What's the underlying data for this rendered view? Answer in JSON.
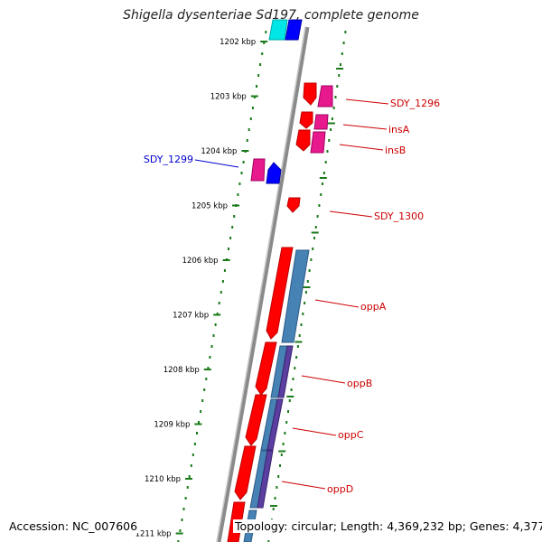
{
  "title": "Shigella dysenteriae Sd197, complete genome",
  "accession": "Accession: NC_007606",
  "topology": "Topology: circular; Length: 4,369,232 bp; Genes: 4,377",
  "colors": {
    "forward": "#ff0000",
    "reverse_pink": "#e8198c",
    "reverse_blue": "#0000ff",
    "cyan": "#00e5e5",
    "steel": "#4682b4",
    "purple": "#5b3fa0",
    "tick": "#1a7a1a",
    "backbone": "#8a8a8a",
    "label_red": "#cc0000",
    "label_blue": "#0000cc"
  },
  "scale_ticks": [
    {
      "label": "1202 kbp",
      "kbp": 1202
    },
    {
      "label": "1203 kbp",
      "kbp": 1203
    },
    {
      "label": "1204 kbp",
      "kbp": 1204
    },
    {
      "label": "1205 kbp",
      "kbp": 1205
    },
    {
      "label": "1206 kbp",
      "kbp": 1206
    },
    {
      "label": "1207 kbp",
      "kbp": 1207
    },
    {
      "label": "1208 kbp",
      "kbp": 1208
    },
    {
      "label": "1209 kbp",
      "kbp": 1209
    },
    {
      "label": "1210 kbp",
      "kbp": 1210
    },
    {
      "label": "1211 kbp",
      "kbp": 1211
    }
  ],
  "gene_labels": [
    {
      "text": "SDY_1296",
      "color": "#cc0000"
    },
    {
      "text": "insA",
      "color": "#cc0000"
    },
    {
      "text": "insB",
      "color": "#cc0000"
    },
    {
      "text": "SDY_1299",
      "color": "#0000cc"
    },
    {
      "text": "SDY_1300",
      "color": "#cc0000"
    },
    {
      "text": "oppA",
      "color": "#cc0000"
    },
    {
      "text": "oppB",
      "color": "#cc0000"
    },
    {
      "text": "oppC",
      "color": "#cc0000"
    },
    {
      "text": "oppD",
      "color": "#cc0000"
    }
  ]
}
